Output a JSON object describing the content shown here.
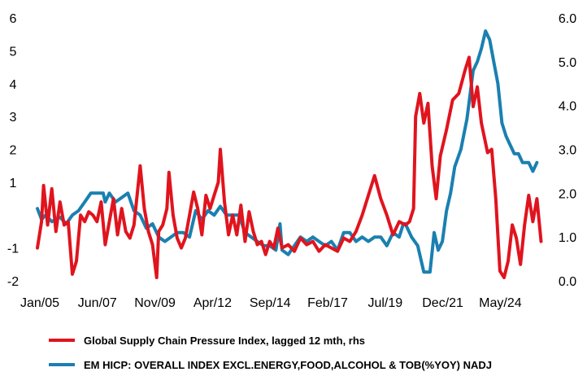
{
  "chart_data": {
    "type": "line",
    "title": "",
    "xlabel": "",
    "ylabel": "",
    "x_tick_labels": [
      "Jan/05",
      "Jun/07",
      "Nov/09",
      "Apr/12",
      "Sep/14",
      "Feb/17",
      "Jul/19",
      "Dec/21",
      "May/24"
    ],
    "x_range": [
      "2005-01",
      "2025-07"
    ],
    "y_left": {
      "range": [
        -2,
        6
      ],
      "ticks": [
        "-2",
        "-1",
        "1",
        "2",
        "3",
        "4",
        "5",
        "6"
      ]
    },
    "y_right": {
      "range": [
        0,
        6
      ],
      "ticks": [
        "0.0",
        "1.0",
        "2.0",
        "3.0",
        "4.0",
        "5.0",
        "6.0"
      ]
    },
    "grid": false,
    "legend_position": "bottom",
    "series": [
      {
        "name": "Global Supply Chain Pressure Index, lagged 12 mth, rhs",
        "axis": "left",
        "color": "#e0141e",
        "points": [
          [
            "2005-01",
            -1.0
          ],
          [
            "2005-03",
            -0.2
          ],
          [
            "2005-04",
            0.9
          ],
          [
            "2005-06",
            -0.3
          ],
          [
            "2005-08",
            0.8
          ],
          [
            "2005-10",
            -0.5
          ],
          [
            "2005-12",
            0.4
          ],
          [
            "2006-02",
            -0.3
          ],
          [
            "2006-04",
            -0.2
          ],
          [
            "2006-06",
            -1.8
          ],
          [
            "2006-08",
            -1.4
          ],
          [
            "2006-10",
            0.0
          ],
          [
            "2006-12",
            -0.2
          ],
          [
            "2007-02",
            0.1
          ],
          [
            "2007-04",
            0.0
          ],
          [
            "2007-06",
            -0.2
          ],
          [
            "2007-08",
            0.4
          ],
          [
            "2007-10",
            -0.9
          ],
          [
            "2007-12",
            -0.2
          ],
          [
            "2008-02",
            0.5
          ],
          [
            "2008-04",
            -0.6
          ],
          [
            "2008-06",
            0.2
          ],
          [
            "2008-08",
            -0.5
          ],
          [
            "2008-10",
            -0.7
          ],
          [
            "2008-12",
            -0.3
          ],
          [
            "2009-02",
            0.9
          ],
          [
            "2009-03",
            1.5
          ],
          [
            "2009-05",
            0.2
          ],
          [
            "2009-07",
            -0.5
          ],
          [
            "2009-09",
            -0.9
          ],
          [
            "2009-11",
            -1.9
          ],
          [
            "2009-12",
            -0.5
          ],
          [
            "2010-02",
            -0.3
          ],
          [
            "2010-04",
            0.2
          ],
          [
            "2010-05",
            1.3
          ],
          [
            "2010-07",
            0.0
          ],
          [
            "2010-09",
            -0.7
          ],
          [
            "2010-11",
            -1.0
          ],
          [
            "2011-01",
            -0.7
          ],
          [
            "2011-03",
            0.0
          ],
          [
            "2011-05",
            0.7
          ],
          [
            "2011-07",
            0.2
          ],
          [
            "2011-09",
            -0.6
          ],
          [
            "2011-11",
            0.6
          ],
          [
            "2012-01",
            0.2
          ],
          [
            "2012-03",
            0.6
          ],
          [
            "2012-05",
            1.0
          ],
          [
            "2012-06",
            2.0
          ],
          [
            "2012-08",
            0.4
          ],
          [
            "2012-10",
            -0.6
          ],
          [
            "2012-12",
            0.0
          ],
          [
            "2013-02",
            -0.6
          ],
          [
            "2013-04",
            0.3
          ],
          [
            "2013-06",
            -0.8
          ],
          [
            "2013-08",
            0.1
          ],
          [
            "2013-10",
            -0.5
          ],
          [
            "2013-12",
            -0.9
          ],
          [
            "2014-02",
            -0.8
          ],
          [
            "2014-04",
            -1.2
          ],
          [
            "2014-06",
            -0.8
          ],
          [
            "2014-08",
            -1.0
          ],
          [
            "2014-10",
            -0.4
          ],
          [
            "2014-12",
            -1.0
          ],
          [
            "2015-03",
            -0.9
          ],
          [
            "2015-06",
            -1.1
          ],
          [
            "2015-09",
            -0.7
          ],
          [
            "2015-12",
            -0.9
          ],
          [
            "2016-03",
            -0.8
          ],
          [
            "2016-06",
            -1.1
          ],
          [
            "2016-09",
            -0.9
          ],
          [
            "2016-12",
            -1.0
          ],
          [
            "2017-03",
            -1.1
          ],
          [
            "2017-06",
            -0.7
          ],
          [
            "2017-09",
            -0.8
          ],
          [
            "2017-12",
            -0.5
          ],
          [
            "2018-03",
            0.0
          ],
          [
            "2018-06",
            0.6
          ],
          [
            "2018-09",
            1.2
          ],
          [
            "2018-12",
            0.5
          ],
          [
            "2019-03",
            0.0
          ],
          [
            "2019-06",
            -0.6
          ],
          [
            "2019-09",
            -0.2
          ],
          [
            "2019-12",
            -0.3
          ],
          [
            "2020-02",
            -0.2
          ],
          [
            "2020-04",
            0.2
          ],
          [
            "2020-05",
            3.0
          ],
          [
            "2020-07",
            3.7
          ],
          [
            "2020-09",
            2.8
          ],
          [
            "2020-11",
            3.4
          ],
          [
            "2021-01",
            1.5
          ],
          [
            "2021-03",
            0.5
          ],
          [
            "2021-05",
            1.8
          ],
          [
            "2021-08",
            2.6
          ],
          [
            "2021-11",
            3.5
          ],
          [
            "2022-02",
            3.7
          ],
          [
            "2022-05",
            4.4
          ],
          [
            "2022-07",
            4.8
          ],
          [
            "2022-09",
            3.3
          ],
          [
            "2022-11",
            3.9
          ],
          [
            "2023-01",
            2.8
          ],
          [
            "2023-04",
            1.9
          ],
          [
            "2023-06",
            2.0
          ],
          [
            "2023-08",
            0.5
          ],
          [
            "2023-10",
            -1.7
          ],
          [
            "2023-12",
            -1.9
          ],
          [
            "2024-02",
            -1.4
          ],
          [
            "2024-04",
            -0.3
          ],
          [
            "2024-06",
            -0.7
          ],
          [
            "2024-08",
            -1.5
          ],
          [
            "2024-10",
            -0.3
          ],
          [
            "2024-12",
            0.6
          ],
          [
            "2025-02",
            -0.2
          ],
          [
            "2025-04",
            0.5
          ],
          [
            "2025-06",
            -0.8
          ]
        ]
      },
      {
        "name": "EM HICP: OVERALL INDEX EXCL.ENERGY,FOOD,ALCOHOL & TOB(%YOY) NADJ",
        "axis": "right",
        "color": "#1a80b0",
        "points": [
          [
            "2005-01",
            1.65
          ],
          [
            "2005-03",
            1.4
          ],
          [
            "2005-05",
            1.5
          ],
          [
            "2005-08",
            1.35
          ],
          [
            "2005-12",
            1.45
          ],
          [
            "2006-03",
            1.3
          ],
          [
            "2006-06",
            1.5
          ],
          [
            "2006-09",
            1.6
          ],
          [
            "2006-12",
            1.8
          ],
          [
            "2007-03",
            2.0
          ],
          [
            "2007-06",
            2.0
          ],
          [
            "2007-09",
            2.0
          ],
          [
            "2007-10",
            1.8
          ],
          [
            "2007-12",
            2.0
          ],
          [
            "2008-03",
            1.8
          ],
          [
            "2008-06",
            1.9
          ],
          [
            "2008-09",
            2.0
          ],
          [
            "2008-12",
            1.6
          ],
          [
            "2009-03",
            1.5
          ],
          [
            "2009-06",
            1.2
          ],
          [
            "2009-09",
            1.3
          ],
          [
            "2009-12",
            1.0
          ],
          [
            "2010-03",
            0.9
          ],
          [
            "2010-06",
            1.0
          ],
          [
            "2010-09",
            1.1
          ],
          [
            "2010-12",
            1.1
          ],
          [
            "2011-03",
            1.0
          ],
          [
            "2011-06",
            1.6
          ],
          [
            "2011-09",
            1.4
          ],
          [
            "2011-12",
            1.6
          ],
          [
            "2012-03",
            1.5
          ],
          [
            "2012-06",
            1.7
          ],
          [
            "2012-09",
            1.5
          ],
          [
            "2012-12",
            1.5
          ],
          [
            "2013-03",
            1.5
          ],
          [
            "2013-06",
            1.1
          ],
          [
            "2013-09",
            1.0
          ],
          [
            "2013-12",
            0.9
          ],
          [
            "2014-03",
            0.8
          ],
          [
            "2014-06",
            0.8
          ],
          [
            "2014-09",
            0.7
          ],
          [
            "2014-11",
            1.3
          ],
          [
            "2014-12",
            0.7
          ],
          [
            "2015-03",
            0.6
          ],
          [
            "2015-06",
            0.8
          ],
          [
            "2015-09",
            1.0
          ],
          [
            "2015-12",
            0.9
          ],
          [
            "2016-03",
            1.0
          ],
          [
            "2016-06",
            0.9
          ],
          [
            "2016-09",
            0.8
          ],
          [
            "2016-12",
            0.9
          ],
          [
            "2017-03",
            0.7
          ],
          [
            "2017-06",
            1.1
          ],
          [
            "2017-09",
            1.1
          ],
          [
            "2017-12",
            0.9
          ],
          [
            "2018-03",
            1.0
          ],
          [
            "2018-06",
            0.9
          ],
          [
            "2018-09",
            1.0
          ],
          [
            "2018-12",
            1.0
          ],
          [
            "2019-03",
            0.8
          ],
          [
            "2019-06",
            1.1
          ],
          [
            "2019-09",
            1.0
          ],
          [
            "2019-11",
            1.3
          ],
          [
            "2019-12",
            1.3
          ],
          [
            "2020-03",
            1.0
          ],
          [
            "2020-06",
            0.8
          ],
          [
            "2020-08",
            0.4
          ],
          [
            "2020-09",
            0.2
          ],
          [
            "2020-12",
            0.2
          ],
          [
            "2021-02",
            1.1
          ],
          [
            "2021-04",
            0.7
          ],
          [
            "2021-06",
            0.9
          ],
          [
            "2021-08",
            1.6
          ],
          [
            "2021-10",
            2.0
          ],
          [
            "2021-12",
            2.6
          ],
          [
            "2022-03",
            3.0
          ],
          [
            "2022-06",
            3.7
          ],
          [
            "2022-09",
            4.8
          ],
          [
            "2022-11",
            5.0
          ],
          [
            "2023-01",
            5.3
          ],
          [
            "2023-03",
            5.7
          ],
          [
            "2023-05",
            5.5
          ],
          [
            "2023-07",
            5.0
          ],
          [
            "2023-09",
            4.5
          ],
          [
            "2023-11",
            3.6
          ],
          [
            "2024-01",
            3.3
          ],
          [
            "2024-03",
            3.1
          ],
          [
            "2024-05",
            2.9
          ],
          [
            "2024-07",
            2.9
          ],
          [
            "2024-09",
            2.7
          ],
          [
            "2024-12",
            2.7
          ],
          [
            "2025-02",
            2.5
          ],
          [
            "2025-04",
            2.7
          ]
        ]
      }
    ]
  }
}
